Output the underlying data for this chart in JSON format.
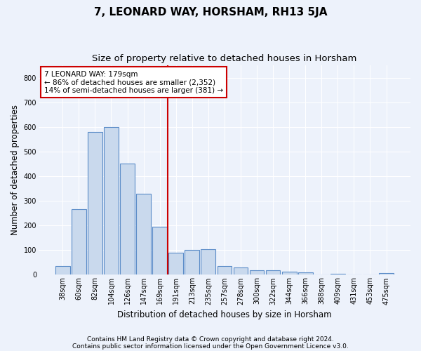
{
  "title": "7, LEONARD WAY, HORSHAM, RH13 5JA",
  "subtitle": "Size of property relative to detached houses in Horsham",
  "xlabel": "Distribution of detached houses by size in Horsham",
  "ylabel": "Number of detached properties",
  "footnote1": "Contains HM Land Registry data © Crown copyright and database right 2024.",
  "footnote2": "Contains public sector information licensed under the Open Government Licence v3.0.",
  "annotation_title": "7 LEONARD WAY: 179sqm",
  "annotation_line1": "← 86% of detached houses are smaller (2,352)",
  "annotation_line2": "14% of semi-detached houses are larger (381) →",
  "bar_color": "#c9d9ed",
  "bar_edge_color": "#5b8cc8",
  "vline_color": "#cc0000",
  "vline_x_idx": 6.5,
  "categories": [
    "38sqm",
    "60sqm",
    "82sqm",
    "104sqm",
    "126sqm",
    "147sqm",
    "169sqm",
    "191sqm",
    "213sqm",
    "235sqm",
    "257sqm",
    "278sqm",
    "300sqm",
    "322sqm",
    "344sqm",
    "366sqm",
    "388sqm",
    "409sqm",
    "431sqm",
    "453sqm",
    "475sqm"
  ],
  "values": [
    35,
    265,
    580,
    600,
    450,
    330,
    195,
    90,
    100,
    105,
    35,
    30,
    17,
    17,
    12,
    10,
    0,
    5,
    0,
    0,
    7
  ],
  "ylim": [
    0,
    850
  ],
  "yticks": [
    0,
    100,
    200,
    300,
    400,
    500,
    600,
    700,
    800
  ],
  "background_color": "#edf2fb",
  "grid_color": "#ffffff",
  "title_fontsize": 11,
  "subtitle_fontsize": 9.5,
  "ylabel_fontsize": 8.5,
  "xlabel_fontsize": 8.5,
  "tick_fontsize": 7,
  "annotation_fontsize": 7.5,
  "footnote_fontsize": 6.5
}
